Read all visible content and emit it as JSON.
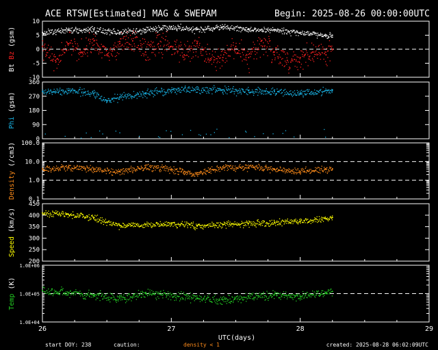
{
  "header": {
    "title": "ACE RTSW[Estimated] MAG & SWEPAM",
    "begin": "Begin: 2025-08-26 00:00:00UTC"
  },
  "footer": {
    "start_doy": "start DOY: 238",
    "caution": "caution:",
    "caution_note": "density < 1",
    "created": "created: 2025-08-28 06:02:09UTC"
  },
  "colors": {
    "background": "#000000",
    "axes": "#ffffff",
    "bt": "#ffffff",
    "bz": "#ff2020",
    "phi": "#19b4e6",
    "density": "#ff8c1a",
    "speed": "#ffff00",
    "temp": "#22cc22"
  },
  "chart_data": [
    {
      "type": "scatter",
      "panel": "mag_field",
      "ylabel_parts": [
        "Bt",
        "Bz",
        "(gsm)"
      ],
      "ylim": [
        -10,
        10
      ],
      "yticks": [
        "10",
        "5",
        "0",
        "-5",
        "-10"
      ],
      "xlim": [
        26,
        29
      ],
      "xticks": [
        "26",
        "27",
        "28",
        "29"
      ],
      "reference_lines": [
        0
      ],
      "series": [
        {
          "name": "Bt",
          "x": [
            26.0,
            26.2,
            26.4,
            26.6,
            26.8,
            27.0,
            27.2,
            27.4,
            27.6,
            27.8,
            28.0,
            28.2,
            28.25
          ],
          "y": [
            6,
            7,
            7,
            6,
            7,
            8,
            7,
            8,
            7,
            7,
            6,
            5,
            5
          ]
        },
        {
          "name": "Bz",
          "x": [
            26.0,
            26.1,
            26.2,
            26.3,
            26.4,
            26.5,
            26.6,
            26.7,
            26.8,
            26.9,
            27.0,
            27.1,
            27.2,
            27.3,
            27.4,
            27.5,
            27.6,
            27.7,
            27.8,
            27.9,
            28.0,
            28.1,
            28.2,
            28.25
          ],
          "y": [
            1,
            -4,
            2,
            -1,
            3,
            -2,
            2,
            3,
            -1,
            2,
            1,
            -2,
            2,
            -4,
            -3,
            1,
            -3,
            3,
            -1,
            -4,
            -3,
            -1,
            -2,
            0
          ]
        }
      ]
    },
    {
      "type": "scatter",
      "panel": "phi",
      "ylabel_parts": [
        "Phi",
        "(gsm)"
      ],
      "ylim": [
        0,
        360
      ],
      "yticks": [
        "360",
        "270",
        "180",
        "90",
        "0"
      ],
      "xlim": [
        26,
        29
      ],
      "series": [
        {
          "name": "Phi",
          "x": [
            26.0,
            26.2,
            26.4,
            26.5,
            26.6,
            26.8,
            27.0,
            27.2,
            27.4,
            27.6,
            27.8,
            28.0,
            28.2,
            28.25
          ],
          "y": [
            300,
            305,
            290,
            240,
            265,
            290,
            310,
            315,
            310,
            305,
            300,
            290,
            305,
            310
          ]
        }
      ]
    },
    {
      "type": "scatter",
      "panel": "density",
      "ylabel_parts": [
        "Density",
        "(/cm3)"
      ],
      "yscale": "log",
      "ylim": [
        0.1,
        100
      ],
      "yticks": [
        "100.0",
        "10.0",
        "1.0",
        "0.1"
      ],
      "xlim": [
        26,
        29
      ],
      "reference_lines": [
        10,
        1
      ],
      "series": [
        {
          "name": "Density",
          "x": [
            26.0,
            26.2,
            26.4,
            26.6,
            26.8,
            27.0,
            27.1,
            27.2,
            27.3,
            27.4,
            27.6,
            27.8,
            28.0,
            28.2,
            28.25
          ],
          "y": [
            4,
            5,
            4,
            3,
            5,
            4,
            3,
            2,
            4,
            5,
            5,
            4,
            3,
            4,
            4
          ]
        }
      ]
    },
    {
      "type": "scatter",
      "panel": "speed",
      "ylabel_parts": [
        "Speed",
        "(km/s)"
      ],
      "ylim": [
        200,
        450
      ],
      "yticks": [
        "450",
        "400",
        "350",
        "300",
        "250",
        "200"
      ],
      "xlim": [
        26,
        29
      ],
      "series": [
        {
          "name": "Speed",
          "x": [
            26.0,
            26.2,
            26.4,
            26.6,
            26.8,
            27.0,
            27.2,
            27.4,
            27.6,
            27.8,
            28.0,
            28.2,
            28.25
          ],
          "y": [
            410,
            405,
            390,
            355,
            360,
            365,
            355,
            360,
            365,
            370,
            375,
            385,
            390
          ]
        }
      ]
    },
    {
      "type": "scatter",
      "panel": "temp",
      "ylabel_parts": [
        "Temp",
        "(K)"
      ],
      "yscale": "log",
      "ylim": [
        10000,
        1000000
      ],
      "yticks": [
        "1.0E+06",
        "1.0E+05",
        "1.0E+04"
      ],
      "xlim": [
        26,
        29
      ],
      "xticks": [
        "26",
        "27",
        "28",
        "29"
      ],
      "xlabel": "UTC(days)",
      "reference_lines": [
        100000
      ],
      "series": [
        {
          "name": "Temp",
          "x": [
            26.0,
            26.2,
            26.4,
            26.6,
            26.8,
            27.0,
            27.2,
            27.4,
            27.6,
            27.8,
            28.0,
            28.2,
            28.25
          ],
          "y": [
            130000,
            110000,
            90000,
            70000,
            100000,
            90000,
            70000,
            60000,
            80000,
            90000,
            80000,
            110000,
            120000
          ]
        }
      ]
    }
  ]
}
